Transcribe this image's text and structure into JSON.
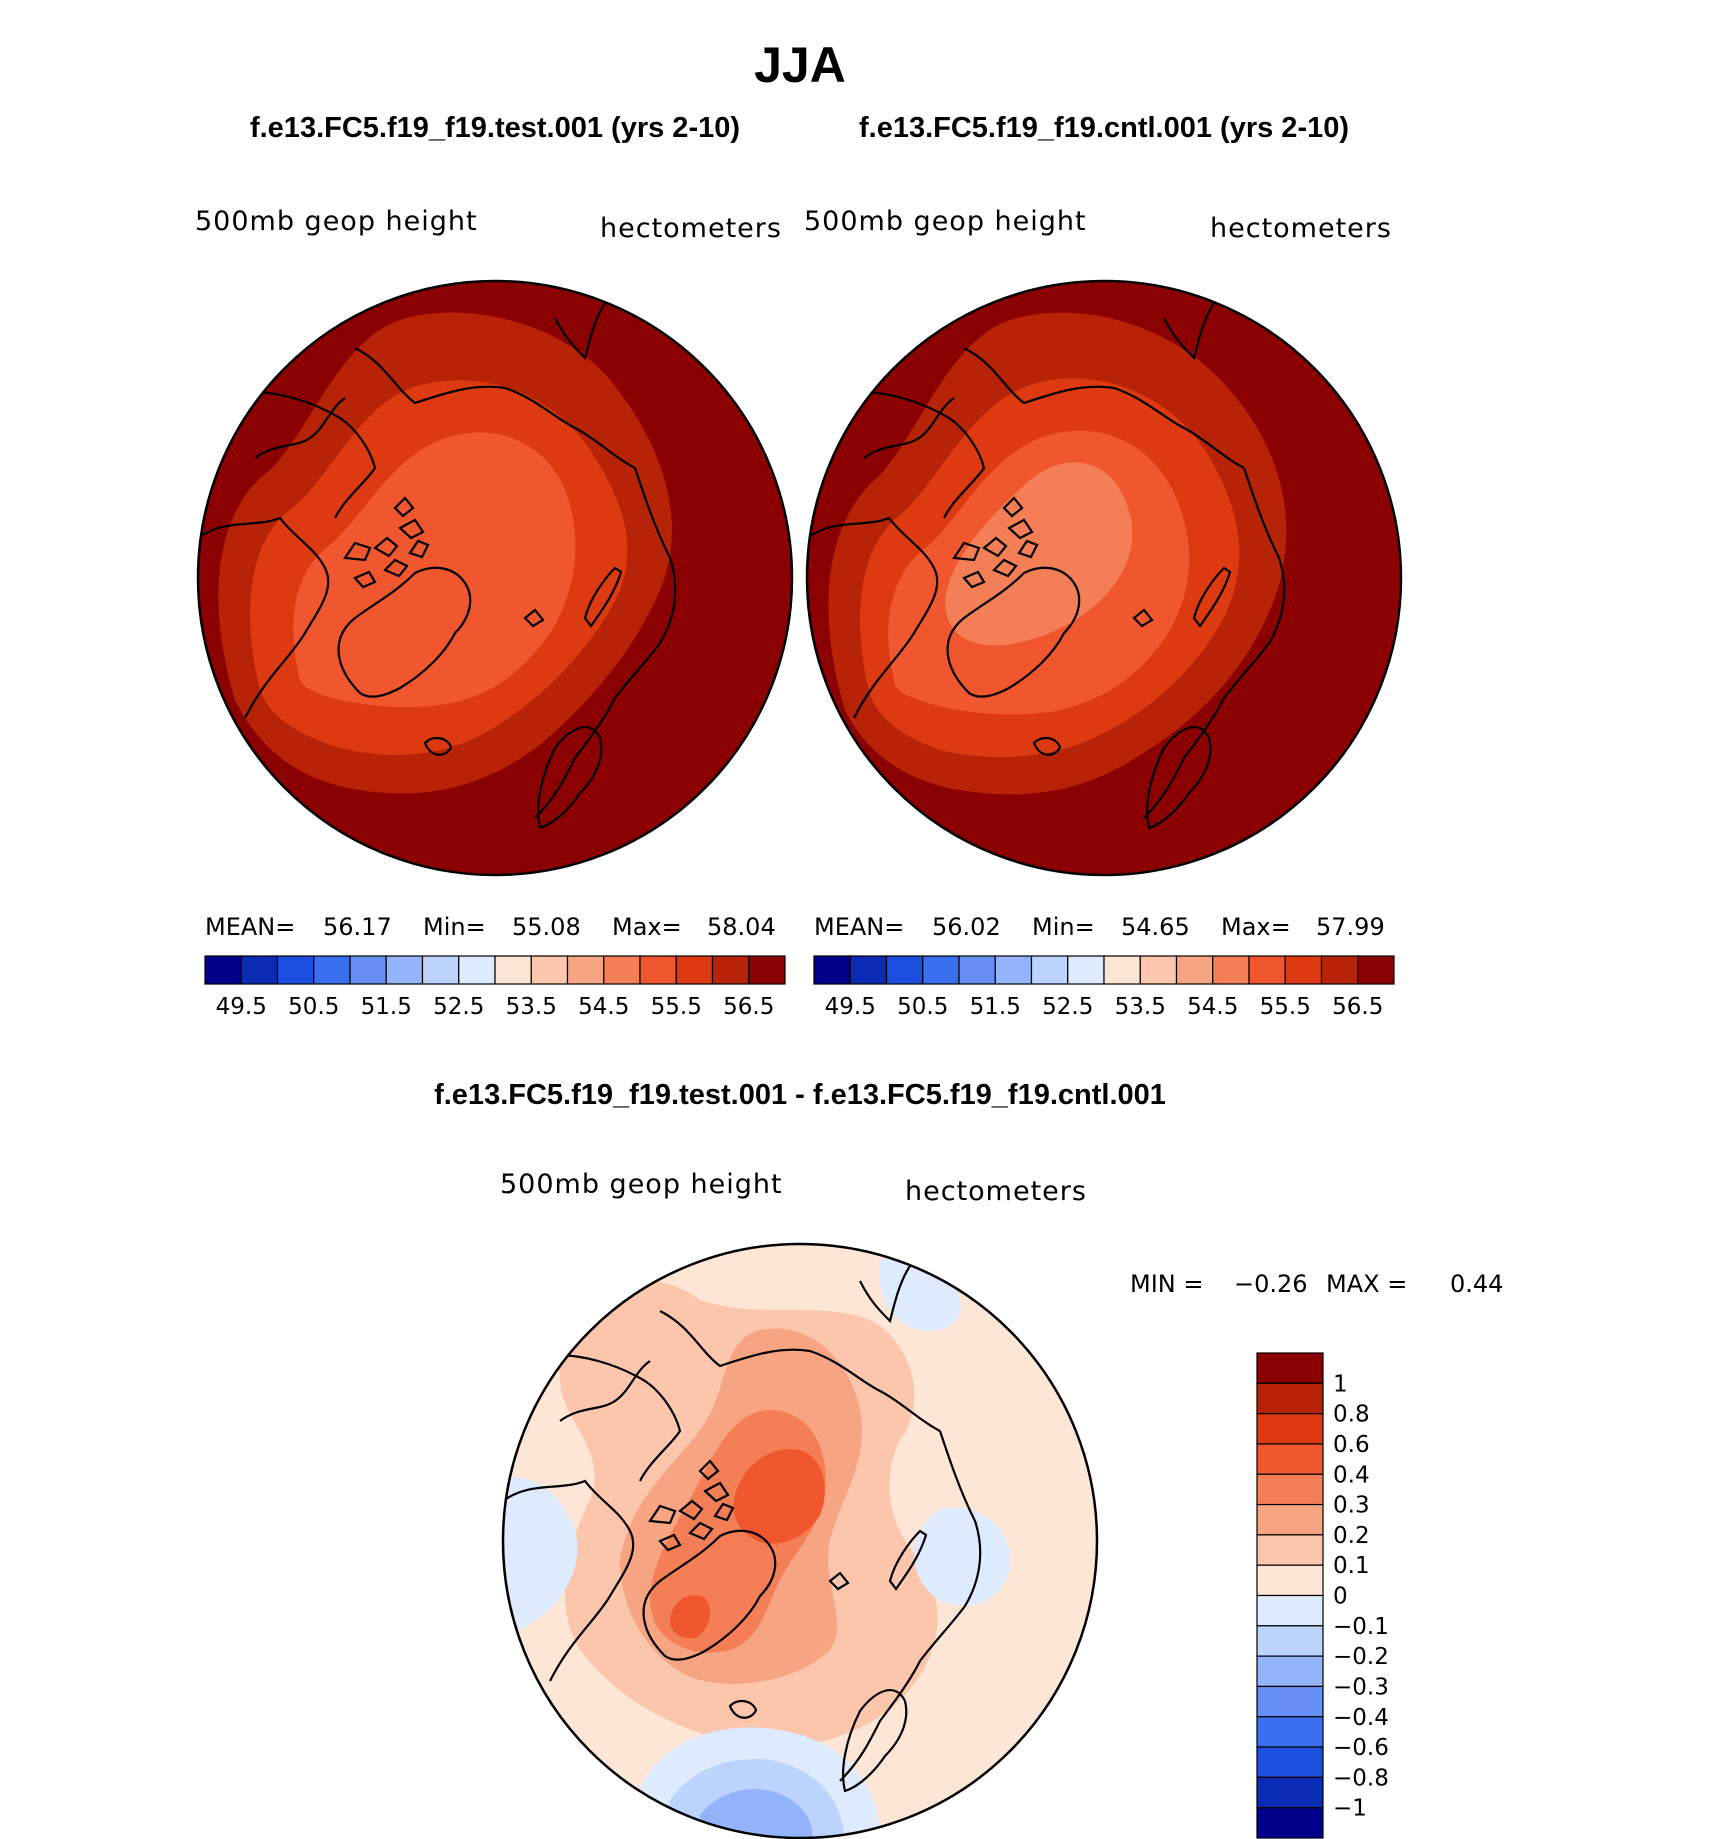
{
  "figure": {
    "season": "JJA",
    "colors": {
      "ocean_base": "#8b0000",
      "coast": "#000000"
    }
  },
  "chart_data": [
    {
      "type": "contour-map",
      "projection": "north-polar-stereographic",
      "run_title": "f.e13.FC5.f19_f19.test.001 (yrs 2-10)",
      "variable": "500mb geop height",
      "units": "hectometers",
      "stats": {
        "mean_label": "MEAN=",
        "mean": "56.17",
        "min_label": "Min=",
        "min": "55.08",
        "max_label": "Max=",
        "max": "58.04"
      },
      "colorbar": {
        "levels": [
          "49.5",
          "50.5",
          "51.5",
          "52.5",
          "53.5",
          "54.5",
          "55.5",
          "56.5"
        ],
        "colors": [
          "#00008b",
          "#0a2bb4",
          "#1c4fe0",
          "#3a6ff0",
          "#6690f5",
          "#93b4fa",
          "#bcd3fc",
          "#deeafd",
          "#fde6d6",
          "#fcc6ac",
          "#f7a483",
          "#f47e56",
          "#f0572f",
          "#de3a12",
          "#b72306",
          "#8b0000"
        ]
      },
      "bands": [
        {
          "level": "56.5",
          "color": "#8b0000"
        },
        {
          "level": "56.0",
          "color": "#b72306"
        },
        {
          "level": "55.5",
          "color": "#de3a12"
        },
        {
          "level": "55.0",
          "color": "#f0572f"
        }
      ]
    },
    {
      "type": "contour-map",
      "projection": "north-polar-stereographic",
      "run_title": "f.e13.FC5.f19_f19.cntl.001 (yrs 2-10)",
      "variable": "500mb geop height",
      "units": "hectometers",
      "stats": {
        "mean_label": "MEAN=",
        "mean": "56.02",
        "min_label": "Min=",
        "min": "54.65",
        "max_label": "Max=",
        "max": "57.99"
      },
      "colorbar": {
        "levels": [
          "49.5",
          "50.5",
          "51.5",
          "52.5",
          "53.5",
          "54.5",
          "55.5",
          "56.5"
        ],
        "colors": [
          "#00008b",
          "#0a2bb4",
          "#1c4fe0",
          "#3a6ff0",
          "#6690f5",
          "#93b4fa",
          "#bcd3fc",
          "#deeafd",
          "#fde6d6",
          "#fcc6ac",
          "#f7a483",
          "#f47e56",
          "#f0572f",
          "#de3a12",
          "#b72306",
          "#8b0000"
        ]
      },
      "bands": [
        {
          "level": "56.5",
          "color": "#8b0000"
        },
        {
          "level": "56.0",
          "color": "#b72306"
        },
        {
          "level": "55.5",
          "color": "#de3a12"
        },
        {
          "level": "55.0",
          "color": "#f0572f"
        },
        {
          "level": "54.5",
          "color": "#f47e56"
        }
      ]
    },
    {
      "type": "contour-map",
      "projection": "north-polar-stereographic",
      "run_title": "f.e13.FC5.f19_f19.test.001 - f.e13.FC5.f19_f19.cntl.001",
      "variable": "500mb geop height",
      "units": "hectometers",
      "stats": {
        "min_label": "MIN =",
        "min": "−0.26",
        "max_label": "MAX =",
        "max": "0.44"
      },
      "colorbar": {
        "orientation": "vertical",
        "levels": [
          "1",
          "0.8",
          "0.6",
          "0.4",
          "0.3",
          "0.2",
          "0.1",
          "0",
          "−0.1",
          "−0.2",
          "−0.3",
          "−0.4",
          "−0.6",
          "−0.8",
          "−1"
        ],
        "colors": [
          "#8b0000",
          "#b72306",
          "#de3a12",
          "#f0572f",
          "#f47e56",
          "#f7a483",
          "#fcc6ac",
          "#fde6d6",
          "#deeafd",
          "#bcd3fc",
          "#93b4fa",
          "#6690f5",
          "#3a6ff0",
          "#1c4fe0",
          "#0a2bb4",
          "#00008b"
        ]
      }
    }
  ]
}
